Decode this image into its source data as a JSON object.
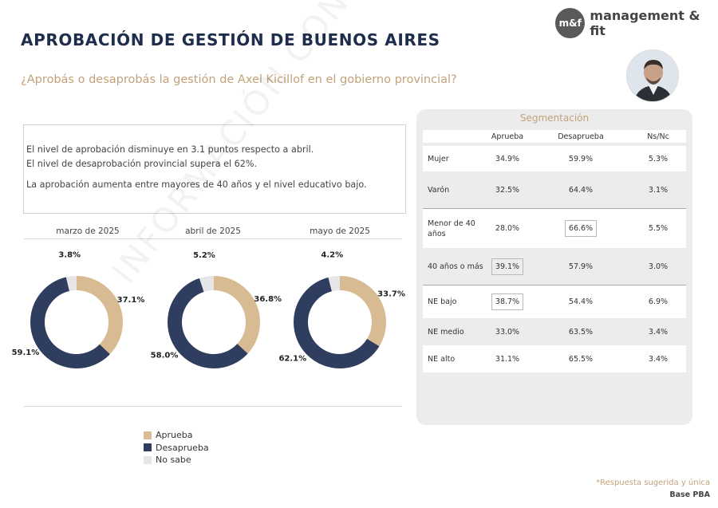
{
  "title": "APROBACIÓN DE GESTIÓN DE BUENOS AIRES",
  "subtitle": "¿Aprobás o desaprobás la gestión de Axel Kicillof en el gobierno provincial?",
  "logo": {
    "badge": "m&f",
    "text": "management & fit"
  },
  "summary": [
    "El nivel de aprobación disminuye en 3.1 puntos respecto a abril.",
    "El nivel de desaprobación provincial supera el 62%.",
    "La aprobación aumenta entre mayores de 40 años y el nivel educativo bajo."
  ],
  "watermark": "INFORMACIÓN CONFIDENCIAL",
  "colors": {
    "aprueba": "#d9bb93",
    "desaprueba": "#2f3d5f",
    "nosabe": "#e6e6e6",
    "accent": "#c2a27a",
    "title": "#1f2d4d"
  },
  "chart_data": {
    "type": "pie",
    "variant": "donut",
    "series_names": [
      "Aprueba",
      "Desaprueba",
      "No sabe"
    ],
    "charts": [
      {
        "month": "marzo de 2025",
        "values": [
          37.1,
          59.1,
          3.8
        ],
        "labels": [
          "37.1%",
          "59.1%",
          "3.8%"
        ]
      },
      {
        "month": "abril de 2025",
        "values": [
          36.8,
          58.0,
          5.2
        ],
        "labels": [
          "36.8%",
          "58.0%",
          "5.2%"
        ]
      },
      {
        "month": "mayo de 2025",
        "values": [
          33.7,
          62.1,
          4.2
        ],
        "labels": [
          "33.7%",
          "62.1%",
          "4.2%"
        ]
      }
    ],
    "legend_placement": "bottom"
  },
  "legend": [
    "Aprueba",
    "Desaprueba",
    "No sabe"
  ],
  "segmentation": {
    "title": "Segmentación",
    "headers": [
      "",
      "Aprueba",
      "Desaprueba",
      "Ns/Nc"
    ],
    "rows": [
      {
        "label": "Mujer",
        "values": [
          "34.9%",
          "59.9%",
          "5.3%"
        ]
      },
      {
        "label": "Varón",
        "values": [
          "32.5%",
          "64.4%",
          "3.1%"
        ]
      },
      {
        "label": "Menor de 40 años",
        "values": [
          "28.0%",
          "66.6%",
          "5.5%"
        ]
      },
      {
        "label": "40 años o más",
        "values": [
          "39.1%",
          "57.9%",
          "3.0%"
        ]
      },
      {
        "label": "NE bajo",
        "values": [
          "38.7%",
          "54.4%",
          "6.9%"
        ]
      },
      {
        "label": "NE medio",
        "values": [
          "33.0%",
          "63.5%",
          "3.4%"
        ]
      },
      {
        "label": "NE alto",
        "values": [
          "31.1%",
          "65.5%",
          "3.4%"
        ]
      }
    ]
  },
  "footnote": "*Respuesta sugerida y única",
  "base": "Base PBA"
}
